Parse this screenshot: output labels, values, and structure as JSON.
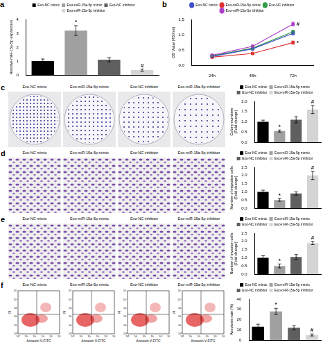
{
  "chart_data": [
    {
      "type": "bar",
      "title": "a",
      "categories": [
        "Exo-NC mimic",
        "Exo-miR-15a-5p mimic",
        "Exo-NC inhibitor",
        "Exo-miR-15a-5p inhibitor"
      ],
      "values": [
        1.0,
        3.2,
        1.1,
        0.35
      ],
      "errors": [
        0.15,
        0.35,
        0.15,
        0.08
      ],
      "colors": [
        "#000000",
        "#a0a0a0",
        "#5f5f5f",
        "#d4d4d4"
      ],
      "ylabel": "Relative miR-15a-5p expression",
      "ylim": [
        0,
        4
      ],
      "yticks": [
        0,
        1,
        2,
        3,
        4
      ],
      "legend": "top",
      "tick_labels": "y",
      "grid": false,
      "annotations": [
        {
          "text": "*",
          "category": "Exo-miR-15a-5p mimic"
        },
        {
          "text": "#",
          "category": "Exo-miR-15a-5p inhibitor"
        }
      ]
    },
    {
      "type": "line",
      "title": "b",
      "categories": [
        "24h",
        "48h",
        "72h"
      ],
      "series": [
        {
          "name": "Exo-NC mimic",
          "color": "#3f4fc8",
          "marker": "circle",
          "values": [
            0.3,
            0.55,
            1.05
          ],
          "errors": [
            0.03,
            0.04,
            0.05
          ]
        },
        {
          "name": "Exo-miR-15a-5p mimic",
          "color": "#e03131",
          "marker": "circle",
          "values": [
            0.28,
            0.4,
            0.75
          ],
          "errors": [
            0.03,
            0.03,
            0.05
          ]
        },
        {
          "name": "Exo-NC inhibitor",
          "color": "#2f9e44",
          "marker": "circle",
          "values": [
            0.32,
            0.57,
            1.1
          ],
          "errors": [
            0.03,
            0.04,
            0.05
          ]
        },
        {
          "name": "Exo-miR-15a-5p inhibitor",
          "color": "#ae3ec9",
          "marker": "circle",
          "values": [
            0.34,
            0.63,
            1.35
          ],
          "errors": [
            0.03,
            0.04,
            0.06
          ]
        }
      ],
      "ylabel": "OD Value (450nm)",
      "ylim": [
        0,
        1.5
      ],
      "yticks": [
        {
          "value": 0,
          "label": "0.0"
        },
        {
          "value": 0.5,
          "label": "0.5"
        },
        {
          "value": 1,
          "label": "1.0"
        },
        {
          "value": 1.5,
          "label": "1.5"
        }
      ],
      "legend": "top",
      "grid": false,
      "annotations": [
        {
          "text": "#",
          "series": "Exo-miR-15a-5p inhibitor",
          "category": "72h"
        },
        {
          "text": "*",
          "series": "Exo-miR-15a-5p mimic",
          "category": "72h"
        }
      ]
    },
    {
      "type": "bar",
      "categories": [
        "Exo-NC mimic",
        "Exo-miR-15a-5p mimic",
        "Exo-NC inhibitor",
        "Exo-miR-15a-5p inhibitor"
      ],
      "values": [
        1.0,
        0.55,
        1.1,
        1.6
      ],
      "errors": [
        0.08,
        0.05,
        0.15,
        0.2
      ],
      "colors": [
        "#000000",
        "#a0a0a0",
        "#5f5f5f",
        "#d4d4d4"
      ],
      "ylabel": "Colony numbers (Fold change)",
      "ylim": [
        0,
        2
      ],
      "yticks": [
        {
          "value": 0,
          "label": "0.0"
        },
        {
          "value": 0.5,
          "label": "0.5"
        },
        {
          "value": 1,
          "label": "1.0"
        },
        {
          "value": 1.5,
          "label": "1.5"
        },
        {
          "value": 2,
          "label": "2.0"
        }
      ],
      "legend": "top",
      "tick_labels": "y",
      "grid": false,
      "annotations": [
        {
          "text": "*",
          "category": "Exo-miR-15a-5p mimic"
        },
        {
          "text": "#",
          "category": "Exo-miR-15a-5p inhibitor"
        }
      ]
    },
    {
      "type": "bar",
      "categories": [
        "Exo-NC mimic",
        "Exo-miR-15a-5p mimic",
        "Exo-NC inhibitor",
        "Exo-miR-15a-5p inhibitor"
      ],
      "values": [
        1.0,
        0.5,
        0.9,
        2.0
      ],
      "errors": [
        0.1,
        0.08,
        0.1,
        0.25
      ],
      "colors": [
        "#000000",
        "#a0a0a0",
        "#5f5f5f",
        "#d4d4d4"
      ],
      "ylabel": "Number of migration cells (Fold change)",
      "ylim": [
        0,
        2.5
      ],
      "yticks": [
        {
          "value": 0,
          "label": "0.0"
        },
        {
          "value": 0.5,
          "label": "0.5"
        },
        {
          "value": 1,
          "label": "1.0"
        },
        {
          "value": 1.5,
          "label": "1.5"
        },
        {
          "value": 2,
          "label": "2.0"
        },
        {
          "value": 2.5,
          "label": "2.5"
        }
      ],
      "legend": "top",
      "tick_labels": "y",
      "grid": false,
      "annotations": [
        {
          "text": "*",
          "category": "Exo-miR-15a-5p mimic"
        },
        {
          "text": "#",
          "category": "Exo-miR-15a-5p inhibitor"
        }
      ]
    },
    {
      "type": "bar",
      "categories": [
        "Exo-NC mimic",
        "Exo-miR-15a-5p mimic",
        "Exo-NC inhibitor",
        "Exo-miR-15a-5p inhibitor"
      ],
      "values": [
        1.0,
        0.5,
        1.05,
        1.9
      ],
      "errors": [
        0.12,
        0.12,
        0.15,
        0.1
      ],
      "colors": [
        "#000000",
        "#a0a0a0",
        "#5f5f5f",
        "#d4d4d4"
      ],
      "ylabel": "Number of invasion cells (Fold change)",
      "ylim": [
        0,
        2.5
      ],
      "yticks": [
        {
          "value": 0,
          "label": "0.0"
        },
        {
          "value": 0.5,
          "label": "0.5"
        },
        {
          "value": 1,
          "label": "1.0"
        },
        {
          "value": 1.5,
          "label": "1.5"
        },
        {
          "value": 2,
          "label": "2.0"
        },
        {
          "value": 2.5,
          "label": "2.5"
        }
      ],
      "legend": "top",
      "tick_labels": "y",
      "grid": false,
      "annotations": [
        {
          "text": "*",
          "category": "Exo-miR-15a-5p mimic"
        },
        {
          "text": "#",
          "category": "Exo-miR-15a-5p inhibitor"
        }
      ]
    },
    {
      "type": "bar",
      "categories": [
        "Exo-NC mimic",
        "Exo-miR-15a-5p mimic",
        "Exo-NC inhibitor",
        "Exo-miR-15a-5p inhibitor"
      ],
      "values": [
        13,
        28,
        12,
        5
      ],
      "errors": [
        2.5,
        3,
        2,
        1
      ],
      "colors": [
        "#000000",
        "#a0a0a0",
        "#5f5f5f",
        "#d4d4d4"
      ],
      "ylabel": "Apoptosis rate (%)",
      "ylim": [
        0,
        40
      ],
      "yticks": [
        0,
        10,
        20,
        30,
        40
      ],
      "legend": "top",
      "tick_labels": "y",
      "grid": false,
      "annotations": [
        {
          "text": "*",
          "category": "Exo-miR-15a-5p mimic"
        },
        {
          "text": "#",
          "category": "Exo-miR-15a-5p inhibitor"
        }
      ]
    }
  ],
  "image_rows": [
    {
      "panel": "c",
      "type": "colony",
      "labels": [
        "Exo-NC mimic",
        "Exo-miR-15a-5p mimic",
        "Exo-NC inhibitor",
        "Exo-miR-15a-5p inhibitor"
      ]
    },
    {
      "panel": "d",
      "type": "transwell",
      "labels": [
        "Exo-NC mimic",
        "Exo-miR-15a-5p mimic",
        "Exo-NC inhibitor",
        "Exo-miR-15a-5p inhibitor"
      ]
    },
    {
      "panel": "e",
      "type": "transwell",
      "labels": [
        "Exo-NC mimic",
        "Exo-miR-15a-5p mimic",
        "Exo-NC inhibitor",
        "Exo-miR-15a-5p inhibitor"
      ]
    },
    {
      "panel": "f",
      "type": "flow_cytometry",
      "labels": [
        "Exo-NC mimic",
        "Exo-miR-15a-5p mimic",
        "Exo-NC inhibitor",
        "Exo-miR-15a-5p inhibitor"
      ],
      "x_label": "Annexin V-FITC",
      "y_label": "PI",
      "axis_ticks": [
        "10⁰",
        "10¹",
        "10²",
        "10³",
        "10⁴",
        "10⁵"
      ]
    }
  ]
}
